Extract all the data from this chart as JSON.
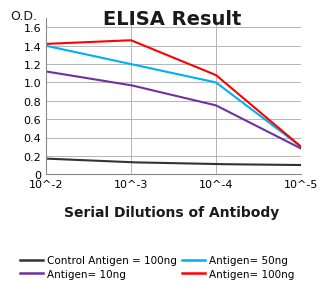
{
  "title": "ELISA Result",
  "ylabel": "O.D.",
  "xlabel": "Serial Dilutions of Antibody",
  "x_tick_labels": [
    "10^-2",
    "10^-3",
    "10^-4",
    "10^-5"
  ],
  "ylim": [
    0,
    1.7
  ],
  "yticks": [
    0,
    0.2,
    0.4,
    0.6,
    0.8,
    1.0,
    1.2,
    1.4,
    1.6
  ],
  "series": [
    {
      "label": "Control Antigen = 100ng",
      "color": "#333333",
      "y_values": [
        0.17,
        0.13,
        0.11,
        0.1
      ]
    },
    {
      "label": "Antigen= 10ng",
      "color": "#7030a0",
      "y_values": [
        1.12,
        0.97,
        0.75,
        0.28
      ]
    },
    {
      "label": "Antigen= 50ng",
      "color": "#00b0f0",
      "y_values": [
        1.4,
        1.2,
        1.0,
        0.3
      ]
    },
    {
      "label": "Antigen= 100ng",
      "color": "#ff0000",
      "y_values": [
        1.42,
        1.46,
        1.08,
        0.3
      ]
    }
  ],
  "background_color": "#ffffff",
  "grid_color": "#aaaaaa",
  "title_fontsize": 14,
  "od_label_fontsize": 9,
  "tick_fontsize": 8,
  "xlabel_fontsize": 10,
  "legend_fontsize": 7.5
}
